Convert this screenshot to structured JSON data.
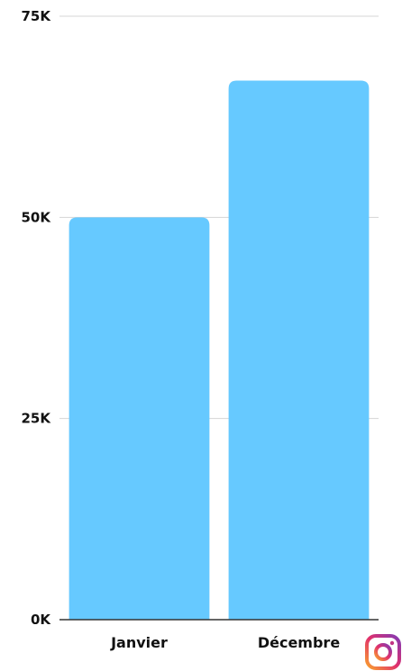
{
  "chart_data": {
    "type": "bar",
    "categories": [
      "Janvier",
      "Décembre"
    ],
    "values": [
      50000,
      67000
    ],
    "ylim": [
      0,
      75000
    ],
    "yticks": [
      0,
      25000,
      50000,
      75000
    ],
    "ytick_labels": [
      "0K",
      "25K",
      "50K",
      "75K"
    ],
    "grid": true,
    "title": "",
    "xlabel": "",
    "ylabel": ""
  },
  "colors": {
    "bar": "#66c9ff",
    "grid": "#d4d4d4",
    "axis": "#333333"
  },
  "icons": {
    "corner_logo": "instagram-icon"
  }
}
